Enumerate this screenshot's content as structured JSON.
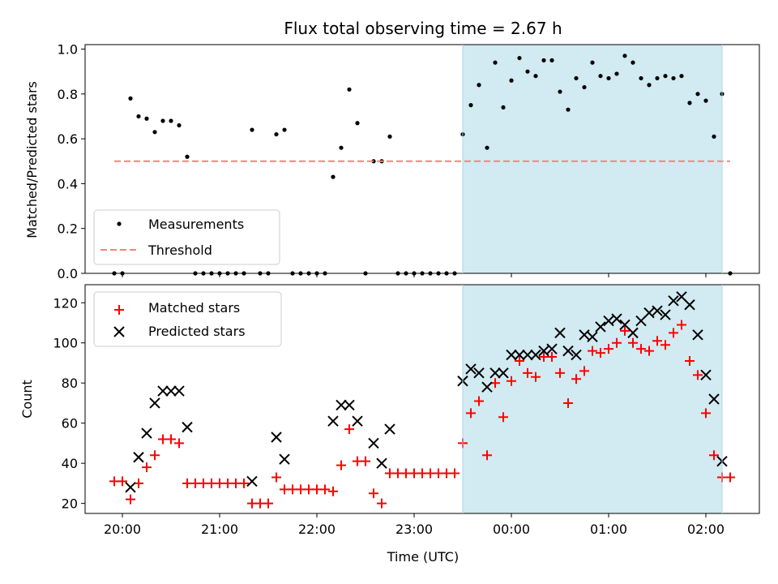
{
  "chart_data": [
    {
      "type": "scatter",
      "title": "Flux total observing time = 2.67 h",
      "xlabel": "",
      "ylabel": "Matched/Predicted stars",
      "ylim": [
        0,
        1.02
      ],
      "yticks": [
        "0.0",
        "0.2",
        "0.4",
        "0.6",
        "0.8",
        "1.0"
      ],
      "xlim": [
        "19:37",
        "02:33"
      ],
      "shaded_interval": [
        "23:30",
        "02:10"
      ],
      "shade_color": "#add8e6",
      "legend_position": "lower-left",
      "series": [
        {
          "name": "Measurements",
          "marker": "dot",
          "color": "#000000",
          "points": [
            [
              "19:55",
              0.0
            ],
            [
              "20:00",
              0.0
            ],
            [
              "20:05",
              0.78
            ],
            [
              "20:10",
              0.7
            ],
            [
              "20:15",
              0.69
            ],
            [
              "20:20",
              0.63
            ],
            [
              "20:25",
              0.68
            ],
            [
              "20:30",
              0.68
            ],
            [
              "20:35",
              0.66
            ],
            [
              "20:40",
              0.52
            ],
            [
              "20:45",
              0.0
            ],
            [
              "20:50",
              0.0
            ],
            [
              "20:55",
              0.0
            ],
            [
              "21:00",
              0.0
            ],
            [
              "21:05",
              0.0
            ],
            [
              "21:10",
              0.0
            ],
            [
              "21:15",
              0.0
            ],
            [
              "21:20",
              0.64
            ],
            [
              "21:25",
              0.0
            ],
            [
              "21:30",
              0.0
            ],
            [
              "21:35",
              0.62
            ],
            [
              "21:40",
              0.64
            ],
            [
              "21:45",
              0.0
            ],
            [
              "21:50",
              0.0
            ],
            [
              "21:55",
              0.0
            ],
            [
              "22:00",
              0.0
            ],
            [
              "22:05",
              0.0
            ],
            [
              "22:10",
              0.43
            ],
            [
              "22:15",
              0.56
            ],
            [
              "22:20",
              0.82
            ],
            [
              "22:25",
              0.67
            ],
            [
              "22:30",
              0.0
            ],
            [
              "22:35",
              0.5
            ],
            [
              "22:40",
              0.5
            ],
            [
              "22:45",
              0.61
            ],
            [
              "22:50",
              0.0
            ],
            [
              "22:55",
              0.0
            ],
            [
              "23:00",
              0.0
            ],
            [
              "23:05",
              0.0
            ],
            [
              "23:10",
              0.0
            ],
            [
              "23:15",
              0.0
            ],
            [
              "23:20",
              0.0
            ],
            [
              "23:25",
              0.0
            ],
            [
              "23:30",
              0.62
            ],
            [
              "23:35",
              0.75
            ],
            [
              "23:40",
              0.84
            ],
            [
              "23:45",
              0.56
            ],
            [
              "23:50",
              0.94
            ],
            [
              "23:55",
              0.74
            ],
            [
              "00:00",
              0.86
            ],
            [
              "00:05",
              0.96
            ],
            [
              "00:10",
              0.9
            ],
            [
              "00:15",
              0.88
            ],
            [
              "00:20",
              0.95
            ],
            [
              "00:25",
              0.95
            ],
            [
              "00:30",
              0.81
            ],
            [
              "00:35",
              0.73
            ],
            [
              "00:40",
              0.87
            ],
            [
              "00:45",
              0.83
            ],
            [
              "00:50",
              0.94
            ],
            [
              "00:55",
              0.88
            ],
            [
              "01:00",
              0.87
            ],
            [
              "01:05",
              0.89
            ],
            [
              "01:10",
              0.97
            ],
            [
              "01:15",
              0.94
            ],
            [
              "01:20",
              0.87
            ],
            [
              "01:25",
              0.84
            ],
            [
              "01:30",
              0.87
            ],
            [
              "01:35",
              0.88
            ],
            [
              "01:40",
              0.87
            ],
            [
              "01:45",
              0.88
            ],
            [
              "01:50",
              0.76
            ],
            [
              "01:55",
              0.8
            ],
            [
              "02:00",
              0.77
            ],
            [
              "02:05",
              0.61
            ],
            [
              "02:10",
              0.8
            ],
            [
              "02:15",
              0.0
            ]
          ]
        },
        {
          "name": "Threshold",
          "marker": "dashed-line",
          "color": "#ff7f7f",
          "points": [
            [
              "19:55",
              0.5
            ],
            [
              "02:15",
              0.5
            ]
          ]
        }
      ]
    },
    {
      "type": "scatter",
      "title": "",
      "xlabel": "Time (UTC)",
      "ylabel": "Count",
      "ylim": [
        15,
        129
      ],
      "yticks": [
        "20",
        "40",
        "60",
        "80",
        "100",
        "120"
      ],
      "xlim": [
        "19:37",
        "02:33"
      ],
      "xticks": [
        "20:00",
        "21:00",
        "22:00",
        "23:00",
        "00:00",
        "01:00",
        "02:00"
      ],
      "shaded_interval": [
        "23:30",
        "02:10"
      ],
      "shade_color": "#add8e6",
      "legend_position": "upper-left",
      "series": [
        {
          "name": "Matched stars",
          "marker": "plus",
          "color": "#ff0000",
          "points": [
            [
              "19:55",
              31
            ],
            [
              "20:00",
              31
            ],
            [
              "20:05",
              22
            ],
            [
              "20:10",
              30
            ],
            [
              "20:15",
              38
            ],
            [
              "20:20",
              44
            ],
            [
              "20:25",
              52
            ],
            [
              "20:30",
              52
            ],
            [
              "20:35",
              50
            ],
            [
              "20:40",
              30
            ],
            [
              "20:45",
              30
            ],
            [
              "20:50",
              30
            ],
            [
              "20:55",
              30
            ],
            [
              "21:00",
              30
            ],
            [
              "21:05",
              30
            ],
            [
              "21:10",
              30
            ],
            [
              "21:15",
              30
            ],
            [
              "21:20",
              20
            ],
            [
              "21:25",
              20
            ],
            [
              "21:30",
              20
            ],
            [
              "21:35",
              33
            ],
            [
              "21:40",
              27
            ],
            [
              "21:45",
              27
            ],
            [
              "21:50",
              27
            ],
            [
              "21:55",
              27
            ],
            [
              "22:00",
              27
            ],
            [
              "22:05",
              27
            ],
            [
              "22:10",
              26
            ],
            [
              "22:15",
              39
            ],
            [
              "22:20",
              57
            ],
            [
              "22:25",
              41
            ],
            [
              "22:30",
              41
            ],
            [
              "22:35",
              25
            ],
            [
              "22:40",
              20
            ],
            [
              "22:45",
              35
            ],
            [
              "22:50",
              35
            ],
            [
              "22:55",
              35
            ],
            [
              "23:00",
              35
            ],
            [
              "23:05",
              35
            ],
            [
              "23:10",
              35
            ],
            [
              "23:15",
              35
            ],
            [
              "23:20",
              35
            ],
            [
              "23:25",
              35
            ],
            [
              "23:30",
              50
            ],
            [
              "23:35",
              65
            ],
            [
              "23:40",
              71
            ],
            [
              "23:45",
              44
            ],
            [
              "23:50",
              80
            ],
            [
              "23:55",
              63
            ],
            [
              "00:00",
              81
            ],
            [
              "00:05",
              91
            ],
            [
              "00:10",
              85
            ],
            [
              "00:15",
              83
            ],
            [
              "00:20",
              93
            ],
            [
              "00:25",
              93
            ],
            [
              "00:30",
              85
            ],
            [
              "00:35",
              70
            ],
            [
              "00:40",
              82
            ],
            [
              "00:45",
              86
            ],
            [
              "00:50",
              96
            ],
            [
              "00:55",
              95
            ],
            [
              "01:00",
              97
            ],
            [
              "01:05",
              100
            ],
            [
              "01:10",
              106
            ],
            [
              "01:15",
              100
            ],
            [
              "01:20",
              97
            ],
            [
              "01:25",
              96
            ],
            [
              "01:30",
              101
            ],
            [
              "01:35",
              99
            ],
            [
              "01:40",
              105
            ],
            [
              "01:45",
              109
            ],
            [
              "01:50",
              91
            ],
            [
              "01:55",
              84
            ],
            [
              "02:00",
              65
            ],
            [
              "02:05",
              44
            ],
            [
              "02:10",
              33
            ],
            [
              "02:15",
              33
            ]
          ]
        },
        {
          "name": "Predicted stars",
          "marker": "x",
          "color": "#000000",
          "points": [
            [
              "20:05",
              28
            ],
            [
              "20:10",
              43
            ],
            [
              "20:15",
              55
            ],
            [
              "20:20",
              70
            ],
            [
              "20:25",
              76
            ],
            [
              "20:30",
              76
            ],
            [
              "20:35",
              76
            ],
            [
              "20:40",
              58
            ],
            [
              "21:20",
              31
            ],
            [
              "21:35",
              53
            ],
            [
              "21:40",
              42
            ],
            [
              "22:10",
              61
            ],
            [
              "22:15",
              69
            ],
            [
              "22:20",
              69
            ],
            [
              "22:25",
              61
            ],
            [
              "22:35",
              50
            ],
            [
              "22:40",
              40
            ],
            [
              "22:45",
              57
            ],
            [
              "23:30",
              81
            ],
            [
              "23:35",
              87
            ],
            [
              "23:40",
              85
            ],
            [
              "23:45",
              78
            ],
            [
              "23:50",
              85
            ],
            [
              "23:55",
              85
            ],
            [
              "00:00",
              94
            ],
            [
              "00:05",
              94
            ],
            [
              "00:10",
              94
            ],
            [
              "00:15",
              94
            ],
            [
              "00:20",
              96
            ],
            [
              "00:25",
              97
            ],
            [
              "00:30",
              105
            ],
            [
              "00:35",
              96
            ],
            [
              "00:40",
              94
            ],
            [
              "00:45",
              104
            ],
            [
              "00:50",
              103
            ],
            [
              "00:55",
              108
            ],
            [
              "01:00",
              111
            ],
            [
              "01:05",
              112
            ],
            [
              "01:10",
              109
            ],
            [
              "01:15",
              105
            ],
            [
              "01:20",
              111
            ],
            [
              "01:25",
              115
            ],
            [
              "01:30",
              116
            ],
            [
              "01:35",
              114
            ],
            [
              "01:40",
              121
            ],
            [
              "01:45",
              123
            ],
            [
              "01:50",
              119
            ],
            [
              "01:55",
              104
            ],
            [
              "02:00",
              84
            ],
            [
              "02:05",
              72
            ],
            [
              "02:10",
              41
            ]
          ]
        }
      ]
    }
  ]
}
